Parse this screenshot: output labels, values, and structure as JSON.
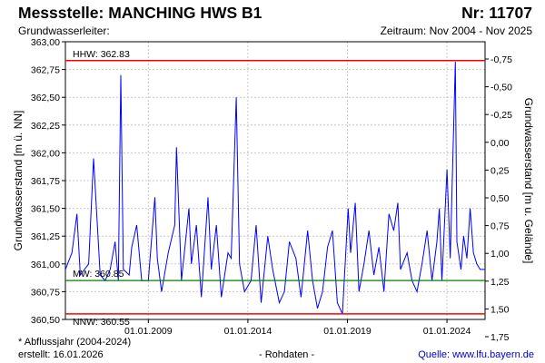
{
  "header": {
    "title": "Messstelle: MANCHING HWS B1",
    "number": "Nr: 11707",
    "aquifer_label": "Grundwasserleiter:",
    "period": "Zeitraum: Nov 2004 - Nov 2025"
  },
  "footer": {
    "note": "* Abflussjahr (2004-2024)",
    "created": "erstellt:  16.01.2026",
    "raw": "- Rohdaten -",
    "source": "Quelle: www.lfu.bayern.de"
  },
  "colors": {
    "series": "#0000ff",
    "hhw": "#ff0000",
    "nnw": "#ff0000",
    "mw": "#008000",
    "grid": "#c8c8c8"
  },
  "chart_data": {
    "type": "line",
    "title": "",
    "ylabel_left": "Grundwasserstand [m ü. NN]",
    "ylabel_right": "Grundwasserstand [m u. Gelände]",
    "xlim": [
      "2004-11-01",
      "2025-11-30"
    ],
    "ylim": [
      360.5,
      363.0
    ],
    "y_ticks_left": [
      "363,00",
      "362,75",
      "362,50",
      "362,25",
      "362,00",
      "361,75",
      "361,50",
      "361,25",
      "361,00",
      "360,75",
      "360,50"
    ],
    "y_ticks_right": [
      "-0,75",
      "-0,50",
      "-0,25",
      "0,00",
      "0,25",
      "0,50",
      "0,75",
      "1,00",
      "1,25",
      "1,50",
      "1,75"
    ],
    "x_ticks": [
      "01.01.2009",
      "01.01.2014",
      "01.01.2019",
      "01.01.2024"
    ],
    "grid": true,
    "reference_lines": [
      {
        "label": "HHW: 362.83",
        "value": 362.83
      },
      {
        "label": "MW: 360.85",
        "value": 360.85
      },
      {
        "label": "NNW: 360.55",
        "value": 360.55
      }
    ],
    "series": [
      {
        "x": [
          "2004-11-01",
          "2005-03-01",
          "2005-06-01",
          "2005-08-01",
          "2006-01-01",
          "2006-04-01",
          "2006-08-01",
          "2006-11-01",
          "2007-02-01",
          "2007-05-01",
          "2007-07-01",
          "2007-08-15",
          "2007-10-01",
          "2008-01-15",
          "2008-03-01",
          "2008-06-01",
          "2008-09-01",
          "2009-01-01",
          "2009-05-01",
          "2009-06-15",
          "2009-09-01",
          "2010-01-01",
          "2010-05-01",
          "2010-06-01",
          "2010-09-01",
          "2011-01-15",
          "2011-03-01",
          "2011-06-01",
          "2011-09-01",
          "2012-01-01",
          "2012-03-01",
          "2012-06-01",
          "2012-09-01",
          "2013-01-01",
          "2013-03-01",
          "2013-06-01",
          "2013-08-01",
          "2013-11-01",
          "2014-03-01",
          "2014-06-01",
          "2014-09-01",
          "2015-01-01",
          "2015-04-01",
          "2015-08-01",
          "2015-11-01",
          "2016-02-01",
          "2016-06-01",
          "2016-09-01",
          "2017-01-01",
          "2017-04-01",
          "2017-07-01",
          "2017-10-01",
          "2018-01-01",
          "2018-04-01",
          "2018-07-01",
          "2018-10-01",
          "2019-01-15",
          "2019-03-01",
          "2019-05-25",
          "2019-08-01",
          "2019-11-01",
          "2020-02-01",
          "2020-05-01",
          "2020-08-01",
          "2020-11-01",
          "2021-02-01",
          "2021-05-01",
          "2021-07-15",
          "2021-09-01",
          "2022-01-01",
          "2022-04-01",
          "2022-07-01",
          "2022-10-01",
          "2023-01-01",
          "2023-04-01",
          "2023-07-01",
          "2023-08-15",
          "2023-10-01",
          "2024-01-01",
          "2024-03-01",
          "2024-06-03",
          "2024-07-01",
          "2024-09-15",
          "2024-11-01",
          "2025-01-01",
          "2025-03-01",
          "2025-05-01",
          "2025-07-01",
          "2025-09-01",
          "2025-11-30"
        ],
        "y": [
          360.95,
          361.1,
          361.45,
          360.9,
          361.0,
          361.95,
          360.9,
          360.85,
          360.95,
          361.2,
          360.85,
          362.7,
          360.95,
          360.9,
          361.15,
          361.35,
          360.85,
          360.85,
          361.6,
          361.05,
          360.75,
          361.1,
          361.35,
          362.05,
          360.85,
          361.5,
          361.0,
          361.35,
          360.7,
          361.6,
          360.95,
          361.35,
          360.7,
          361.1,
          361.05,
          362.5,
          361.0,
          360.75,
          360.85,
          361.35,
          360.65,
          361.25,
          360.95,
          360.65,
          360.75,
          361.2,
          361.05,
          360.7,
          361.3,
          360.85,
          360.6,
          360.75,
          361.15,
          361.3,
          360.65,
          360.55,
          361.5,
          361.1,
          361.55,
          360.75,
          361.0,
          361.3,
          360.9,
          361.15,
          360.75,
          361.45,
          361.3,
          361.55,
          360.95,
          361.1,
          360.85,
          360.75,
          361.0,
          361.3,
          360.85,
          361.2,
          361.5,
          360.85,
          361.85,
          361.05,
          362.82,
          361.2,
          360.95,
          361.25,
          361.05,
          361.5,
          361.1,
          361.0,
          360.95,
          360.95
        ]
      }
    ]
  }
}
